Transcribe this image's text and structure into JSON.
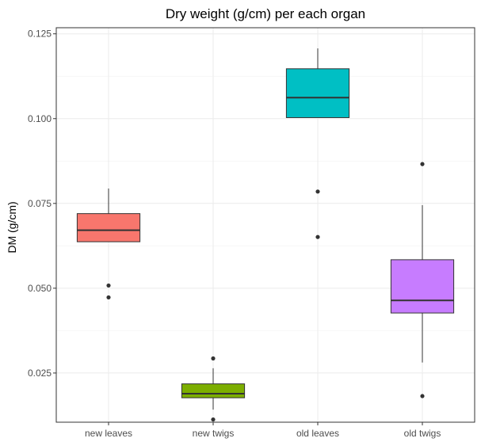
{
  "chart_data": {
    "type": "boxplot",
    "title": "Dry weight (g/cm) per each organ",
    "xlabel": "",
    "ylabel": "DM (g/cm)",
    "ylim": [
      0.0105,
      0.1268
    ],
    "yticks": [
      0.025,
      0.05,
      0.075,
      0.1,
      0.125
    ],
    "ytick_labels": [
      "0.025",
      "0.050",
      "0.075",
      "0.100",
      "0.125"
    ],
    "grid": true,
    "legend": "none",
    "categories": [
      "new leaves",
      "new twigs",
      "old leaves",
      "old twigs"
    ],
    "boxes": [
      {
        "category": "new leaves",
        "color": "#F8766D",
        "whisker_low": 0.0637,
        "q1": 0.0637,
        "median": 0.0671,
        "q3": 0.072,
        "whisker_high": 0.0794,
        "outliers": [
          0.0508,
          0.0473
        ]
      },
      {
        "category": "new twigs",
        "color": "#7CAE00",
        "whisker_low": 0.0142,
        "q1": 0.0177,
        "median": 0.0189,
        "q3": 0.0218,
        "whisker_high": 0.0264,
        "outliers": [
          0.0293,
          0.0113
        ]
      },
      {
        "category": "old leaves",
        "color": "#00BFC4",
        "whisker_low": 0.1003,
        "q1": 0.1003,
        "median": 0.1062,
        "q3": 0.1147,
        "whisker_high": 0.1207,
        "outliers": [
          0.0785,
          0.0651
        ]
      },
      {
        "category": "old twigs",
        "color": "#C77CFF",
        "whisker_low": 0.0281,
        "q1": 0.0427,
        "median": 0.0464,
        "q3": 0.0584,
        "whisker_high": 0.0745,
        "outliers": [
          0.0866,
          0.0182
        ]
      }
    ]
  }
}
